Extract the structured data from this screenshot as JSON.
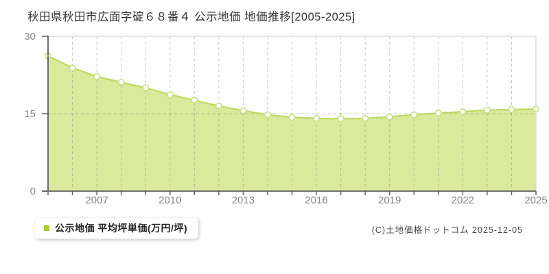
{
  "page": {
    "title": "秋田県秋田市広面字碇６８番４ 公示地価 地価推移[2005-2025]",
    "copyright": "(C)土地価格ドットコム 2025-12-05"
  },
  "legend": {
    "label": "公示地価 平均坪単価(万円/坪)"
  },
  "chart_data": {
    "type": "area",
    "title": "秋田県秋田市広面字碇６８番４ 公示地価 地価推移[2005-2025]",
    "series_name": "公示地価 平均坪単価(万円/坪)",
    "ylabel": "平均坪単価(万円/坪)",
    "x": [
      2005,
      2006,
      2007,
      2008,
      2009,
      2010,
      2011,
      2012,
      2013,
      2014,
      2015,
      2016,
      2017,
      2018,
      2019,
      2020,
      2021,
      2022,
      2023,
      2024,
      2025
    ],
    "values": [
      26.2,
      23.9,
      22.2,
      21.1,
      20.0,
      18.7,
      17.6,
      16.5,
      15.6,
      14.8,
      14.3,
      14.1,
      14.0,
      14.1,
      14.4,
      14.8,
      15.1,
      15.4,
      15.7,
      15.8,
      15.9
    ],
    "xlim": [
      2005,
      2025
    ],
    "ylim": [
      0,
      30
    ],
    "yticks": [
      0,
      15,
      30
    ],
    "ygrid": [
      15
    ],
    "xtick_labels": [
      2007,
      2010,
      2013,
      2016,
      2019,
      2022,
      2025
    ],
    "grid": "dashed",
    "legend_position": "bottom-left",
    "colors": {
      "fill": "#dbe99d",
      "line": "#bdd95e",
      "marker_fill": "#ffffff",
      "marker_stroke": "#c7e07c",
      "legend_marker": "#a5cb2c",
      "grid": "#8a8a8a",
      "axis": "#5f5f5f",
      "border": "#dcdcdc",
      "tick_label": "#858585"
    }
  }
}
